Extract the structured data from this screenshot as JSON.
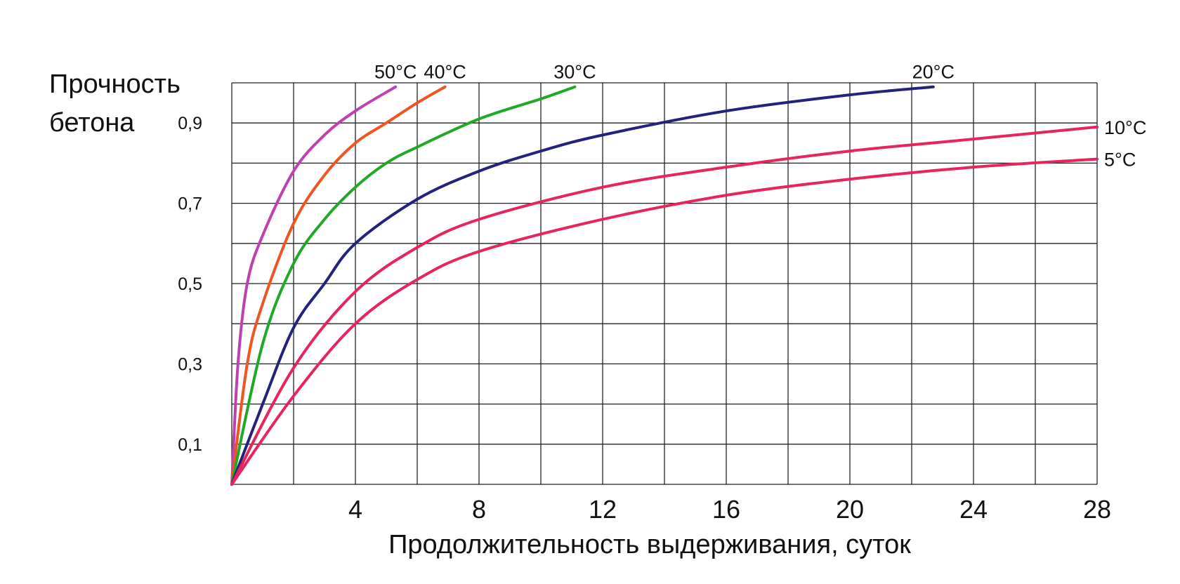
{
  "chart_data": {
    "type": "line",
    "ylabel_lines": [
      "Прочность",
      "бетона"
    ],
    "xlabel": "Продолжительность выдерживания, суток",
    "xlim": [
      0,
      28
    ],
    "ylim": [
      0,
      1.0
    ],
    "x_ticks": [
      4,
      8,
      12,
      16,
      20,
      24,
      28
    ],
    "x_tick_labels": [
      "4",
      "8",
      "12",
      "16",
      "20",
      "24",
      "28"
    ],
    "x_grid_step": 2,
    "y_ticks": [
      0.1,
      0.3,
      0.5,
      0.7,
      0.9
    ],
    "y_tick_labels": [
      "0,1",
      "0,3",
      "0,5",
      "0,7",
      "0,9"
    ],
    "y_grid_step": 0.1,
    "grid": true,
    "series": [
      {
        "name": "50°C",
        "color": "#c040b0",
        "x": [
          0,
          0.2,
          0.5,
          1,
          2,
          3,
          4,
          5.3
        ],
        "y": [
          0,
          0.3,
          0.5,
          0.62,
          0.78,
          0.87,
          0.93,
          0.99
        ]
      },
      {
        "name": "40°C",
        "color": "#ee5522",
        "x": [
          0,
          0.5,
          1,
          2,
          3,
          4,
          5,
          6,
          6.9
        ],
        "y": [
          0,
          0.3,
          0.45,
          0.65,
          0.77,
          0.85,
          0.9,
          0.95,
          0.99
        ]
      },
      {
        "name": "30°C",
        "color": "#22a828",
        "x": [
          0,
          1,
          2,
          3,
          4,
          5,
          6,
          8,
          10,
          11.1
        ],
        "y": [
          0,
          0.35,
          0.55,
          0.66,
          0.74,
          0.8,
          0.84,
          0.91,
          0.96,
          0.99
        ]
      },
      {
        "name": "20°C",
        "color": "#23237e",
        "x": [
          0,
          1,
          2,
          3,
          4,
          6,
          8,
          10,
          12,
          16,
          20,
          22.7
        ],
        "y": [
          0,
          0.2,
          0.39,
          0.5,
          0.6,
          0.71,
          0.78,
          0.83,
          0.87,
          0.93,
          0.97,
          0.99
        ]
      },
      {
        "name": "10°C",
        "color": "#e8245c",
        "x": [
          0,
          2,
          4,
          6,
          8,
          12,
          16,
          20,
          24,
          28
        ],
        "y": [
          0,
          0.29,
          0.48,
          0.59,
          0.66,
          0.74,
          0.79,
          0.83,
          0.86,
          0.89
        ]
      },
      {
        "name": "5°C",
        "color": "#e8245c",
        "x": [
          0,
          2,
          4,
          6,
          8,
          12,
          16,
          20,
          24,
          28
        ],
        "y": [
          0,
          0.22,
          0.4,
          0.51,
          0.58,
          0.66,
          0.72,
          0.76,
          0.79,
          0.81
        ]
      }
    ]
  }
}
